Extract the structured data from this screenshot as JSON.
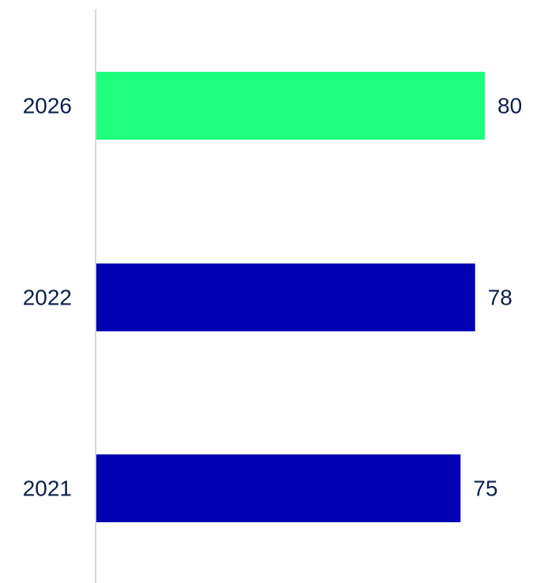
{
  "chart_data": {
    "type": "bar",
    "orientation": "horizontal",
    "categories": [
      "2026",
      "2022",
      "2021"
    ],
    "values": [
      80,
      78,
      75
    ],
    "bar_colors": [
      "#1eff7f",
      "#0202b4",
      "#0202b4"
    ],
    "xlim": [
      0,
      80
    ],
    "grid": false,
    "title": "",
    "xlabel": "",
    "ylabel": ""
  },
  "colors": {
    "highlight": "#1eff7f",
    "primary": "#0202b4",
    "text": "#0b1f4b",
    "axis": "#d9d9d9"
  }
}
